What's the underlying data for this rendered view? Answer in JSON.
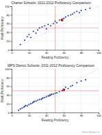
{
  "chart_data": [
    {
      "type": "scatter",
      "title": "Charter Schools: 2011-2012 Proficiency Comparison",
      "x_label": "Reading Proficiency",
      "y_label": "Math Proficiency",
      "xlim": [
        0,
        100
      ],
      "ylim": [
        0,
        100
      ],
      "xticks": [
        0,
        20,
        40,
        60,
        80,
        100
      ],
      "yticks": [
        0,
        20,
        40,
        60,
        80,
        100
      ],
      "grid": true,
      "vline": 50,
      "hline": 50,
      "series": [
        {
          "color": "#3355aa",
          "marker": "circle",
          "x": [
            10,
            15,
            18,
            20,
            22,
            25,
            28,
            30,
            32,
            35,
            38,
            40,
            42,
            45,
            48,
            50,
            52,
            55,
            58,
            60,
            62,
            65,
            68,
            70,
            72,
            75,
            78,
            80,
            85,
            90
          ],
          "values": [
            12,
            22,
            30,
            35,
            28,
            42,
            38,
            45,
            50,
            52,
            55,
            48,
            58,
            55,
            60,
            65,
            62,
            68,
            70,
            72,
            75,
            78,
            80,
            82,
            85,
            88,
            85,
            90,
            92,
            95
          ]
        },
        {
          "color": "#cc1111",
          "marker": "square",
          "x": [
            58
          ],
          "values": [
            68
          ]
        }
      ]
    },
    {
      "type": "scatter",
      "title": "MPS District Schools: 2011-2012 Proficiency Comparison",
      "x_label": "Reading Proficiency",
      "y_label": "Math Proficiency",
      "xlim": [
        0,
        100
      ],
      "ylim": [
        0,
        100
      ],
      "xticks": [
        0,
        20,
        40,
        60,
        80,
        100
      ],
      "yticks": [
        0,
        20,
        40,
        60,
        80,
        100
      ],
      "grid": true,
      "vline": 50,
      "hline": 50,
      "annotations": [
        "CharterSchool.us"
      ],
      "series": [
        {
          "color": "#3355aa",
          "marker": "circle",
          "x": [
            8,
            10,
            12,
            14,
            15,
            16,
            18,
            20,
            22,
            24,
            25,
            26,
            28,
            30,
            32,
            34,
            35,
            36,
            38,
            40,
            42,
            43,
            44,
            45,
            46,
            48,
            50,
            52,
            55,
            58,
            60,
            62,
            65,
            68,
            70,
            75,
            80,
            85
          ],
          "values": [
            5,
            8,
            10,
            12,
            14,
            16,
            15,
            18,
            20,
            22,
            24,
            25,
            26,
            28,
            30,
            30,
            32,
            33,
            34,
            36,
            38,
            38,
            40,
            40,
            42,
            42,
            44,
            45,
            48,
            50,
            52,
            58,
            55,
            60,
            62,
            68,
            72,
            75
          ]
        },
        {
          "color": "#cc1111",
          "marker": "square",
          "x": [
            60
          ],
          "values": [
            52
          ]
        }
      ]
    }
  ]
}
